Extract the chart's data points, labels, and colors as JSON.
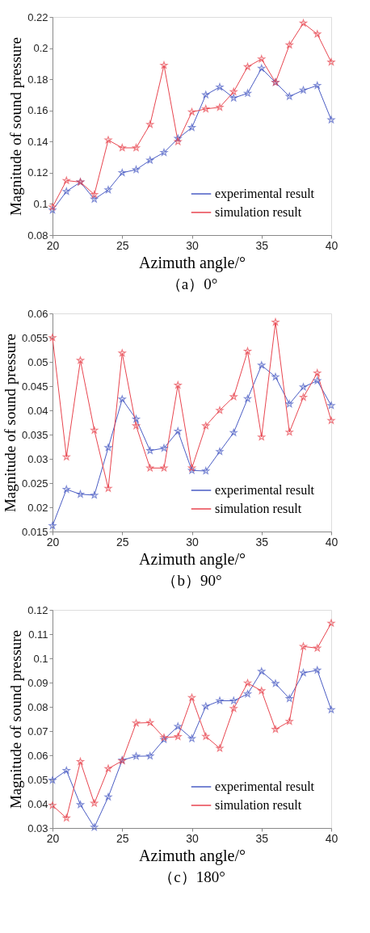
{
  "chart_data": [
    {
      "type": "line",
      "title": "（a）0°",
      "xlabel": "Azimuth angle/°",
      "ylabel": "Magnitude of sound pressure",
      "x": [
        20,
        21,
        22,
        23,
        24,
        25,
        26,
        27,
        28,
        29,
        30,
        31,
        32,
        33,
        34,
        35,
        36,
        37,
        38,
        39,
        40
      ],
      "xlim": [
        20,
        40
      ],
      "xticks": [
        20,
        25,
        30,
        35,
        40
      ],
      "ylim": [
        0.08,
        0.22
      ],
      "yticks": [
        0.08,
        0.1,
        0.12,
        0.14,
        0.16,
        0.18,
        0.2,
        0.22
      ],
      "legend": "bottom right",
      "marker": "star",
      "series": [
        {
          "name": "experimental result",
          "color": "#4a5cc4",
          "values": [
            0.096,
            0.108,
            0.114,
            0.103,
            0.109,
            0.12,
            0.122,
            0.128,
            0.133,
            0.142,
            0.149,
            0.17,
            0.175,
            0.168,
            0.171,
            0.187,
            0.178,
            0.169,
            0.173,
            0.176,
            0.154
          ]
        },
        {
          "name": "simulation result",
          "color": "#e8454f",
          "values": [
            0.098,
            0.115,
            0.114,
            0.106,
            0.141,
            0.136,
            0.136,
            0.151,
            0.189,
            0.14,
            0.159,
            0.161,
            0.162,
            0.172,
            0.188,
            0.193,
            0.178,
            0.202,
            0.216,
            0.209,
            0.191
          ]
        }
      ]
    },
    {
      "type": "line",
      "title": "（b）90°",
      "xlabel": "Azimuth angle/°",
      "ylabel": "Magnitude of sound pressure",
      "x": [
        20,
        21,
        22,
        23,
        24,
        25,
        26,
        27,
        28,
        29,
        30,
        31,
        32,
        33,
        34,
        35,
        36,
        37,
        38,
        39,
        40
      ],
      "xlim": [
        20,
        40
      ],
      "xticks": [
        20,
        25,
        30,
        35,
        40
      ],
      "ylim": [
        0.015,
        0.06
      ],
      "yticks": [
        0.015,
        0.02,
        0.025,
        0.03,
        0.035,
        0.04,
        0.045,
        0.05,
        0.055,
        0.06
      ],
      "legend": "bottom right",
      "marker": "star",
      "series": [
        {
          "name": "experimental result",
          "color": "#4a5cc4",
          "values": [
            0.0162,
            0.0237,
            0.0227,
            0.0225,
            0.0323,
            0.0423,
            0.0382,
            0.0317,
            0.0322,
            0.0357,
            0.0276,
            0.0275,
            0.0315,
            0.0354,
            0.0424,
            0.0493,
            0.0469,
            0.0413,
            0.0448,
            0.0461,
            0.041
          ]
        },
        {
          "name": "simulation result",
          "color": "#e8454f",
          "values": [
            0.055,
            0.0304,
            0.0503,
            0.0359,
            0.0239,
            0.0518,
            0.0368,
            0.0281,
            0.0281,
            0.0452,
            0.0281,
            0.0368,
            0.04,
            0.0428,
            0.0522,
            0.0345,
            0.0582,
            0.0355,
            0.0427,
            0.0477,
            0.0379
          ]
        }
      ]
    },
    {
      "type": "line",
      "title": "（c）180°",
      "xlabel": "Azimuth angle/°",
      "ylabel": "Magnitude of sound pressure",
      "x": [
        20,
        21,
        22,
        23,
        24,
        25,
        26,
        27,
        28,
        29,
        30,
        31,
        32,
        33,
        34,
        35,
        36,
        37,
        38,
        39,
        40
      ],
      "xlim": [
        20,
        40
      ],
      "xticks": [
        20,
        25,
        30,
        35,
        40
      ],
      "ylim": [
        0.03,
        0.12
      ],
      "yticks": [
        0.03,
        0.04,
        0.05,
        0.06,
        0.07,
        0.08,
        0.09,
        0.1,
        0.11,
        0.12
      ],
      "legend": "bottom right",
      "marker": "star",
      "series": [
        {
          "name": "experimental result",
          "color": "#4a5cc4",
          "values": [
            0.0497,
            0.0537,
            0.0396,
            0.0303,
            0.0428,
            0.058,
            0.0596,
            0.0597,
            0.0665,
            0.0719,
            0.0669,
            0.0802,
            0.0825,
            0.0825,
            0.0853,
            0.0946,
            0.0896,
            0.0834,
            0.094,
            0.0951,
            0.0788
          ]
        },
        {
          "name": "simulation result",
          "color": "#e8454f",
          "values": [
            0.0393,
            0.0341,
            0.0574,
            0.0402,
            0.0545,
            0.0577,
            0.0733,
            0.0735,
            0.0673,
            0.0677,
            0.0838,
            0.0678,
            0.0629,
            0.0793,
            0.0898,
            0.0866,
            0.0707,
            0.074,
            0.1049,
            0.1042,
            0.1145
          ]
        }
      ]
    }
  ]
}
